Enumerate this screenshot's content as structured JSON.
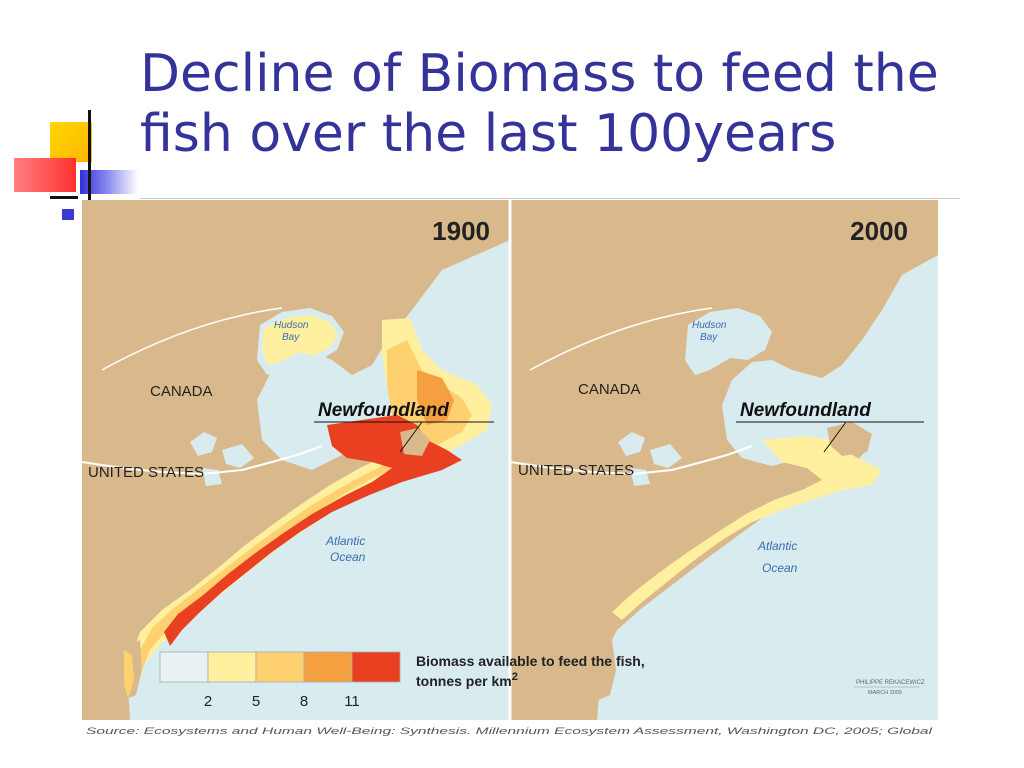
{
  "slide": {
    "title_line1": "Decline of Biomass to feed the",
    "title_line2": "fish over the last 100years"
  },
  "maps": [
    {
      "year": "1900",
      "labels": {
        "bay": "Hudson",
        "bay2": "Bay",
        "country1": "CANADA",
        "country2": "UNITED STATES",
        "island": "Newfoundland",
        "ocean": "Atlantic",
        "ocean2": "Ocean"
      }
    },
    {
      "year": "2000",
      "labels": {
        "bay": "Hudson",
        "bay2": "Bay",
        "country1": "CANADA",
        "country2": "UNITED STATES",
        "island": "Newfoundland",
        "ocean": "Atlantic",
        "ocean2": "Ocean"
      }
    }
  ],
  "legend": {
    "title_line1": "Biomass available to feed the fish,",
    "title_line2": "tonnes per km",
    "title_sup": "2",
    "ticks": [
      "2",
      "5",
      "8",
      "11"
    ],
    "colors": [
      "#e8f2f2",
      "#fff0a0",
      "#ffd070",
      "#f5a040",
      "#e84020"
    ]
  },
  "credit": {
    "line1": "PHILIPPE REKACEWICZ",
    "line2": "MARCH 2005"
  },
  "source": "Source: Ecosystems and Human Well-Being: Synthesis. Millennium Ecosystem Assessment, Washington DC, 2005; Global",
  "colors": {
    "title": "#33339a",
    "land": "#d9b98c",
    "sea": "#d8ebef",
    "border": "#ffffff",
    "label": "#222222",
    "water_label": "#3a6cb0"
  }
}
